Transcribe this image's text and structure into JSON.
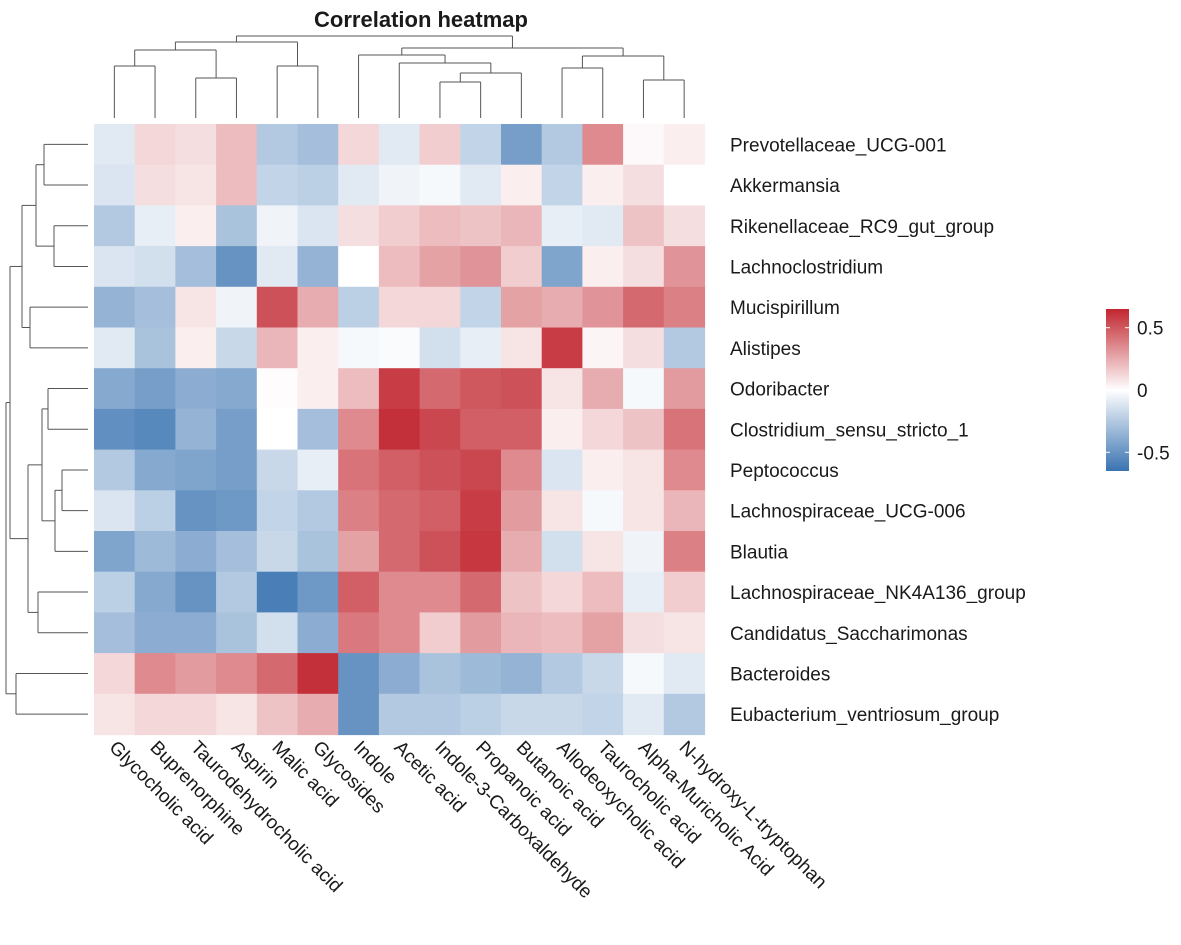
{
  "chart_data": {
    "type": "heatmap",
    "title": "Correlation heatmap",
    "rows": [
      "Prevotellaceae_UCG-001",
      "Akkermansia",
      "Rikenellaceae_RC9_gut_group",
      "Lachnoclostridium",
      "Mucispirillum",
      "Alistipes",
      "Odoribacter",
      "Clostridium_sensu_stricto_1",
      "Peptococcus",
      "Lachnospiraceae_UCG-006",
      "Blautia",
      "Lachnospiraceae_NK4A136_group",
      "Candidatus_Saccharimonas",
      "Bacteroides",
      "Eubacterium_ventriosum_group"
    ],
    "columns": [
      "Glycocholic acid",
      "Buprenorphine",
      "Taurodehydrocholic acid",
      "Aspirin",
      "Malic acid",
      "Glycosides",
      "Indole",
      "Acetic acid",
      "Indole-3-Carboxaldehyde",
      "Propanoic acid",
      "Butanoic acid",
      "Allodeoxycholic acid",
      "Taurocholic acid",
      "Alpha-Muricholic Acid",
      "N-hydroxy-L-tryptophan"
    ],
    "values": [
      [
        -0.1,
        0.12,
        0.1,
        0.2,
        -0.25,
        -0.3,
        0.12,
        -0.1,
        0.15,
        -0.2,
        -0.45,
        -0.25,
        0.35,
        0.02,
        0.05
      ],
      [
        -0.12,
        0.1,
        0.08,
        0.2,
        -0.2,
        -0.22,
        -0.1,
        -0.05,
        -0.03,
        -0.1,
        0.05,
        -0.2,
        0.05,
        0.1,
        0.0
      ],
      [
        -0.25,
        -0.08,
        0.05,
        -0.28,
        -0.05,
        -0.12,
        0.1,
        0.15,
        0.2,
        0.18,
        0.22,
        -0.08,
        -0.1,
        0.18,
        0.1
      ],
      [
        -0.12,
        -0.15,
        -0.3,
        -0.5,
        -0.1,
        -0.35,
        0.0,
        0.2,
        0.28,
        0.32,
        0.15,
        -0.42,
        0.05,
        0.1,
        0.32
      ],
      [
        -0.35,
        -0.3,
        0.08,
        -0.05,
        0.52,
        0.25,
        -0.22,
        0.12,
        0.12,
        -0.2,
        0.28,
        0.25,
        0.32,
        0.45,
        0.38
      ],
      [
        -0.1,
        -0.28,
        0.05,
        -0.18,
        0.22,
        0.05,
        -0.03,
        -0.02,
        -0.15,
        -0.08,
        0.08,
        0.58,
        0.03,
        0.1,
        -0.25
      ],
      [
        -0.4,
        -0.45,
        -0.38,
        -0.4,
        0.01,
        0.05,
        0.2,
        0.58,
        0.45,
        0.5,
        0.52,
        0.08,
        0.25,
        -0.03,
        0.3
      ],
      [
        -0.52,
        -0.55,
        -0.35,
        -0.45,
        0.0,
        -0.3,
        0.35,
        0.62,
        0.55,
        0.48,
        0.48,
        0.05,
        0.12,
        0.18,
        0.42
      ],
      [
        -0.25,
        -0.4,
        -0.42,
        -0.45,
        -0.18,
        -0.08,
        0.42,
        0.48,
        0.52,
        0.55,
        0.35,
        -0.12,
        0.05,
        0.08,
        0.35
      ],
      [
        -0.12,
        -0.22,
        -0.5,
        -0.48,
        -0.2,
        -0.25,
        0.38,
        0.45,
        0.48,
        0.58,
        0.3,
        0.08,
        -0.03,
        0.08,
        0.22
      ],
      [
        -0.42,
        -0.32,
        -0.38,
        -0.3,
        -0.18,
        -0.28,
        0.28,
        0.45,
        0.52,
        0.6,
        0.25,
        -0.15,
        0.08,
        -0.05,
        0.38
      ],
      [
        -0.22,
        -0.4,
        -0.5,
        -0.25,
        -0.6,
        -0.48,
        0.48,
        0.35,
        0.35,
        0.45,
        0.18,
        0.12,
        0.2,
        -0.08,
        0.15
      ],
      [
        -0.3,
        -0.38,
        -0.38,
        -0.28,
        -0.15,
        -0.38,
        0.4,
        0.35,
        0.15,
        0.3,
        0.22,
        0.2,
        0.28,
        0.1,
        0.08
      ],
      [
        0.12,
        0.35,
        0.3,
        0.35,
        0.45,
        0.62,
        -0.5,
        -0.38,
        -0.28,
        -0.32,
        -0.35,
        -0.25,
        -0.18,
        -0.03,
        -0.1
      ],
      [
        0.08,
        0.12,
        0.12,
        0.08,
        0.18,
        0.25,
        -0.5,
        -0.25,
        -0.25,
        -0.22,
        -0.18,
        -0.18,
        -0.2,
        -0.1,
        -0.25
      ]
    ],
    "colorbar": {
      "min": -0.65,
      "max": 0.65,
      "ticks": [
        0.5,
        0,
        -0.5
      ],
      "tick_labels": [
        "0.5",
        "0",
        "-0.5"
      ],
      "colors": {
        "low": "#3a73b1",
        "mid": "#ffffff",
        "high": "#c1262f"
      }
    }
  }
}
